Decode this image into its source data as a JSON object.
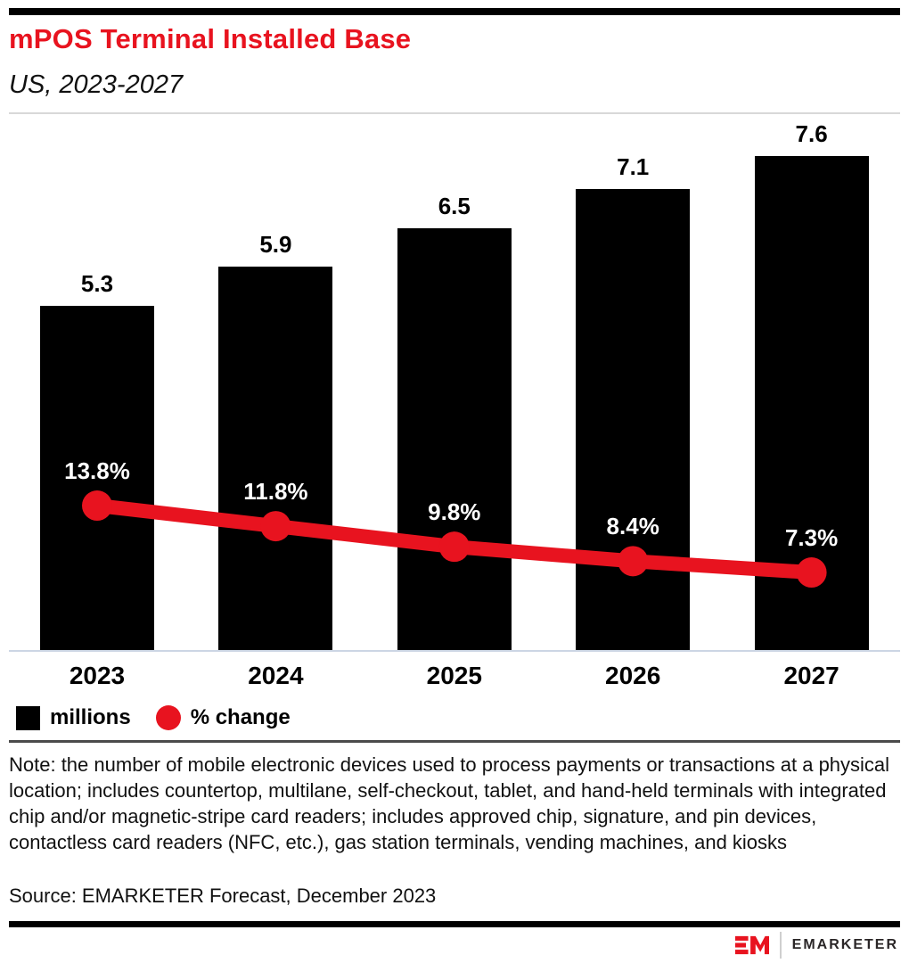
{
  "header": {
    "title": "mPOS Terminal Installed Base",
    "subtitle": "US, 2023-2027"
  },
  "chart_data": {
    "type": "bar",
    "subtype": "bar-plus-line-combo",
    "title": "mPOS Terminal Installed Base",
    "subtitle": "US, 2023-2027",
    "categories": [
      "2023",
      "2024",
      "2025",
      "2026",
      "2027"
    ],
    "series": [
      {
        "name": "millions",
        "type": "bar",
        "color": "#000000",
        "values": [
          5.3,
          5.9,
          6.5,
          7.1,
          7.6
        ],
        "labels": [
          "5.3",
          "5.9",
          "6.5",
          "7.1",
          "7.6"
        ]
      },
      {
        "name": "% change",
        "type": "line",
        "color": "#e8131f",
        "values": [
          13.8,
          11.8,
          9.8,
          8.4,
          7.3
        ],
        "labels": [
          "13.8%",
          "11.8%",
          "9.8%",
          "8.4%",
          "7.3%"
        ]
      }
    ],
    "axes_visible": false,
    "grid": false,
    "legend_position": "bottom-left",
    "legend": [
      {
        "label": "millions",
        "swatch": "square",
        "color": "#000000"
      },
      {
        "label": "% change",
        "swatch": "circle",
        "color": "#e8131f"
      }
    ]
  },
  "note": "Note: the number of mobile electronic devices used to process payments or transactions at a physical location; includes countertop, multilane, self-checkout, tablet, and hand-held terminals with integrated chip and/or magnetic-stripe card readers; includes approved chip, signature, and pin devices, contactless card readers (NFC, etc.), gas station terminals, vending machines, and kiosks",
  "source": "Source: EMARKETER Forecast, December 2023",
  "footer": {
    "brand": "EMARKETER",
    "logo": "emarketer-em-monogram"
  },
  "colors": {
    "accent_red": "#e8131f",
    "bar_black": "#000000",
    "axis_line": "#ccd6e4"
  }
}
